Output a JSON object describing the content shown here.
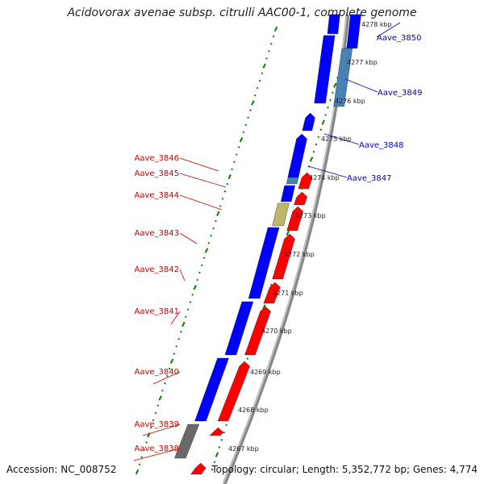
{
  "title": "Acidovorax avenae subsp. citrulli AAC00-1, complete genome",
  "accession": "Accession: NC_008752",
  "topology": "Topology: circular; Length: 5,352,772 bp; Genes: 4,774",
  "colors": {
    "forward": "#ff0000",
    "reverse": "#0000ff",
    "steel": "#4682b4",
    "olive": "#bdb76b",
    "gray": "#696969",
    "ticks": "#008000",
    "backbone": "#888888",
    "label_red": "#cc0000",
    "label_blue": "#0000cc"
  },
  "kbp_ticks": [
    "4267 kbp",
    "4268 kbp",
    "4269 kbp",
    "4270 kbp",
    "4271 kbp",
    "4272 kbp",
    "4273 kbp",
    "4274 kbp",
    "4275 kbp",
    "4276 kbp",
    "4277 kbp",
    "4278 kbp"
  ],
  "genes_left": [
    "Aave_3846",
    "Aave_3845",
    "Aave_3844",
    "Aave_3843",
    "Aave_3842",
    "Aave_3841",
    "Aave_3840",
    "Aave_3839",
    "Aave_3838"
  ],
  "genes_right": [
    "Aave_3850",
    "Aave_3849",
    "Aave_3848",
    "Aave_3847"
  ]
}
